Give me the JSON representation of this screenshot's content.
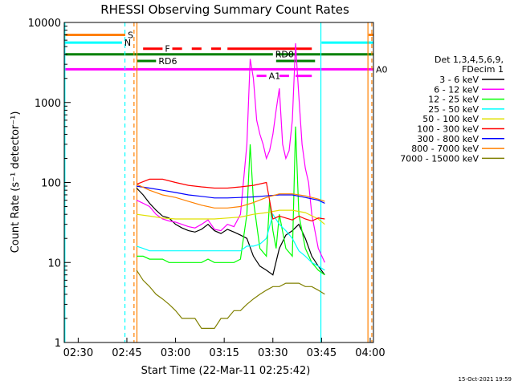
{
  "chart_data": {
    "type": "line",
    "title": "RHESSI Observing Summary Count Rates",
    "xlabel": "Start Time (22-Mar-11 02:25:42)",
    "ylabel": "Count Rate (s⁻¹ detector⁻¹)",
    "xlim_min": [
      25.7,
      121
    ],
    "ylim": [
      1,
      10000
    ],
    "yscale": "log",
    "x_ticks": [
      {
        "label": "02:30",
        "x": 30
      },
      {
        "label": "02:45",
        "x": 45
      },
      {
        "label": "03:00",
        "x": 60
      },
      {
        "label": "03:15",
        "x": 75
      },
      {
        "label": "03:30",
        "x": 90
      },
      {
        "label": "03:45",
        "x": 105
      },
      {
        "label": "04:00",
        "x": 120
      }
    ],
    "y_ticks": [
      {
        "label": "1",
        "y": 1
      },
      {
        "label": "10",
        "y": 10
      },
      {
        "label": "100",
        "y": 100
      },
      {
        "label": "1000",
        "y": 1000
      },
      {
        "label": "10000",
        "y": 10000
      }
    ],
    "legend": {
      "placement": "right",
      "header": [
        "Det 1,3,4,5,6,9,",
        "FDecim 1"
      ]
    },
    "series": [
      {
        "name": "3 - 6 keV",
        "color": "#000000",
        "x": [
          48,
          50,
          52,
          54,
          56,
          58,
          60,
          62,
          64,
          66,
          68,
          70,
          72,
          74,
          76,
          78,
          80,
          82,
          84,
          86,
          88,
          90,
          92,
          94,
          96,
          98,
          100,
          102,
          104,
          106
        ],
        "y": [
          85,
          70,
          55,
          45,
          38,
          36,
          30,
          27,
          25,
          24,
          26,
          30,
          25,
          23,
          26,
          24,
          22,
          20,
          12,
          9,
          8,
          7,
          15,
          22,
          25,
          30,
          20,
          12,
          9,
          7
        ]
      },
      {
        "name": "6 - 12 keV",
        "color": "#ff00ff",
        "x": [
          48,
          50,
          52,
          54,
          56,
          58,
          60,
          62,
          64,
          66,
          68,
          70,
          72,
          74,
          76,
          78,
          80,
          82,
          83,
          84,
          85,
          86,
          87,
          88,
          89,
          90,
          91,
          92,
          93,
          94,
          95,
          96,
          97,
          98,
          99,
          100,
          101,
          102,
          104,
          106
        ],
        "y": [
          60,
          55,
          50,
          40,
          35,
          33,
          32,
          30,
          28,
          27,
          30,
          34,
          26,
          25,
          30,
          28,
          40,
          300,
          3500,
          2000,
          600,
          400,
          300,
          200,
          250,
          400,
          800,
          1500,
          300,
          200,
          250,
          600,
          5500,
          1200,
          300,
          150,
          100,
          40,
          15,
          10
        ]
      },
      {
        "name": "12 - 25 keV",
        "color": "#00ff00",
        "x": [
          48,
          50,
          52,
          54,
          56,
          58,
          60,
          62,
          64,
          66,
          68,
          70,
          72,
          74,
          76,
          78,
          80,
          82,
          83,
          84,
          86,
          88,
          89,
          90,
          91,
          92,
          94,
          96,
          97,
          98,
          100,
          102,
          104,
          106
        ],
        "y": [
          12,
          12,
          11,
          11,
          11,
          10,
          10,
          10,
          10,
          10,
          10,
          11,
          10,
          10,
          10,
          10,
          11,
          40,
          300,
          60,
          15,
          12,
          60,
          25,
          15,
          40,
          15,
          12,
          500,
          40,
          15,
          10,
          8,
          7
        ]
      },
      {
        "name": "25 - 50 keV",
        "color": "#00ffff",
        "x": [
          48,
          50,
          52,
          54,
          56,
          58,
          60,
          62,
          64,
          66,
          68,
          70,
          72,
          74,
          76,
          78,
          80,
          82,
          84,
          86,
          88,
          90,
          92,
          94,
          96,
          98,
          100,
          102,
          104,
          106
        ],
        "y": [
          16,
          15,
          14,
          14,
          14,
          14,
          14,
          14,
          14,
          14,
          14,
          14,
          14,
          14,
          14,
          14,
          14,
          16,
          16,
          17,
          20,
          40,
          30,
          25,
          20,
          14,
          12,
          10,
          9,
          8
        ]
      },
      {
        "name": "50 - 100 keV",
        "color": "#e0e000",
        "x": [
          48,
          52,
          56,
          60,
          64,
          68,
          72,
          76,
          80,
          84,
          88,
          92,
          96,
          100,
          104,
          106
        ],
        "y": [
          40,
          38,
          36,
          35,
          35,
          35,
          35,
          36,
          37,
          40,
          42,
          45,
          45,
          42,
          35,
          30
        ]
      },
      {
        "name": "100 - 300 keV",
        "color": "#ff0000",
        "x": [
          48,
          52,
          56,
          60,
          64,
          68,
          72,
          76,
          80,
          84,
          88,
          90,
          92,
          94,
          96,
          98,
          100,
          102,
          104,
          106
        ],
        "y": [
          95,
          110,
          110,
          100,
          92,
          88,
          85,
          85,
          88,
          92,
          100,
          35,
          38,
          36,
          34,
          38,
          35,
          33,
          36,
          35
        ]
      },
      {
        "name": "300 - 800 keV",
        "color": "#0000ff",
        "x": [
          48,
          52,
          56,
          60,
          64,
          68,
          72,
          76,
          80,
          84,
          88,
          92,
          96,
          100,
          104,
          106
        ],
        "y": [
          90,
          85,
          80,
          75,
          70,
          67,
          64,
          64,
          65,
          66,
          68,
          70,
          70,
          65,
          60,
          55
        ]
      },
      {
        "name": "800 - 7000 keV",
        "color": "#ff8000",
        "x": [
          48,
          52,
          56,
          60,
          64,
          68,
          72,
          76,
          80,
          84,
          88,
          92,
          96,
          100,
          104,
          106
        ],
        "y": [
          95,
          80,
          70,
          65,
          58,
          52,
          48,
          48,
          50,
          56,
          65,
          72,
          72,
          68,
          62,
          58
        ]
      },
      {
        "name": "7000 - 15000 keV",
        "color": "#808000",
        "x": [
          48,
          50,
          52,
          54,
          56,
          58,
          60,
          62,
          64,
          66,
          68,
          70,
          72,
          74,
          76,
          78,
          80,
          82,
          84,
          86,
          88,
          90,
          92,
          94,
          96,
          98,
          100,
          102,
          104,
          106
        ],
        "y": [
          8,
          6,
          5,
          4,
          3.5,
          3,
          2.5,
          2,
          2,
          2,
          1.5,
          1.5,
          1.5,
          2,
          2,
          2.5,
          2.5,
          3,
          3.5,
          4,
          4.5,
          5,
          5,
          5.5,
          5.5,
          5.5,
          5,
          5,
          4.5,
          4
        ]
      }
    ],
    "flags": [
      {
        "label": "S",
        "color": "#ff8000",
        "segments": [
          [
            25.7,
            44.5
          ],
          [
            119.5,
            121
          ]
        ],
        "y": 7000
      },
      {
        "label": "N",
        "color": "#00ffff",
        "segments": [
          [
            25.7,
            43.5
          ],
          [
            105,
            121
          ]
        ],
        "y": 5600
      },
      {
        "label": "F",
        "color": "#ff0000",
        "segments": [
          [
            50,
            56
          ],
          [
            59,
            62
          ],
          [
            65,
            68
          ],
          [
            71,
            74
          ],
          [
            76,
            102
          ]
        ],
        "y": 4700
      },
      {
        "label": "RD0",
        "color": "#008000",
        "segments": [
          [
            25.7,
            90
          ],
          [
            91,
            121
          ]
        ],
        "y": 4000
      },
      {
        "label": "RD6",
        "color": "#008000",
        "segments": [
          [
            48,
            54
          ],
          [
            91,
            103
          ]
        ],
        "y": 3300
      },
      {
        "label": "A0",
        "color": "#ff00ff",
        "segments": [
          [
            25.7,
            121
          ]
        ],
        "y": 2600
      },
      {
        "label": "A1",
        "color": "#ff00ff",
        "segments": [
          [
            85,
            88
          ],
          [
            92,
            95
          ],
          [
            97,
            102
          ]
        ],
        "y": 2150
      }
    ],
    "vlines": [
      {
        "x": 25.9,
        "color": "#00ffff",
        "style": "solid"
      },
      {
        "x": 44.4,
        "color": "#00ffff",
        "style": "dashed"
      },
      {
        "x": 47.2,
        "color": "#ff8000",
        "style": "dashed"
      },
      {
        "x": 48.1,
        "color": "#ff8000",
        "style": "solid"
      },
      {
        "x": 104.8,
        "color": "#00ffff",
        "style": "solid"
      },
      {
        "x": 119.3,
        "color": "#ff8000",
        "style": "solid"
      },
      {
        "x": 120.5,
        "color": "#ff8000",
        "style": "dashed"
      }
    ]
  },
  "footer": {
    "timestamp": "15-Oct-2021 19:59"
  }
}
